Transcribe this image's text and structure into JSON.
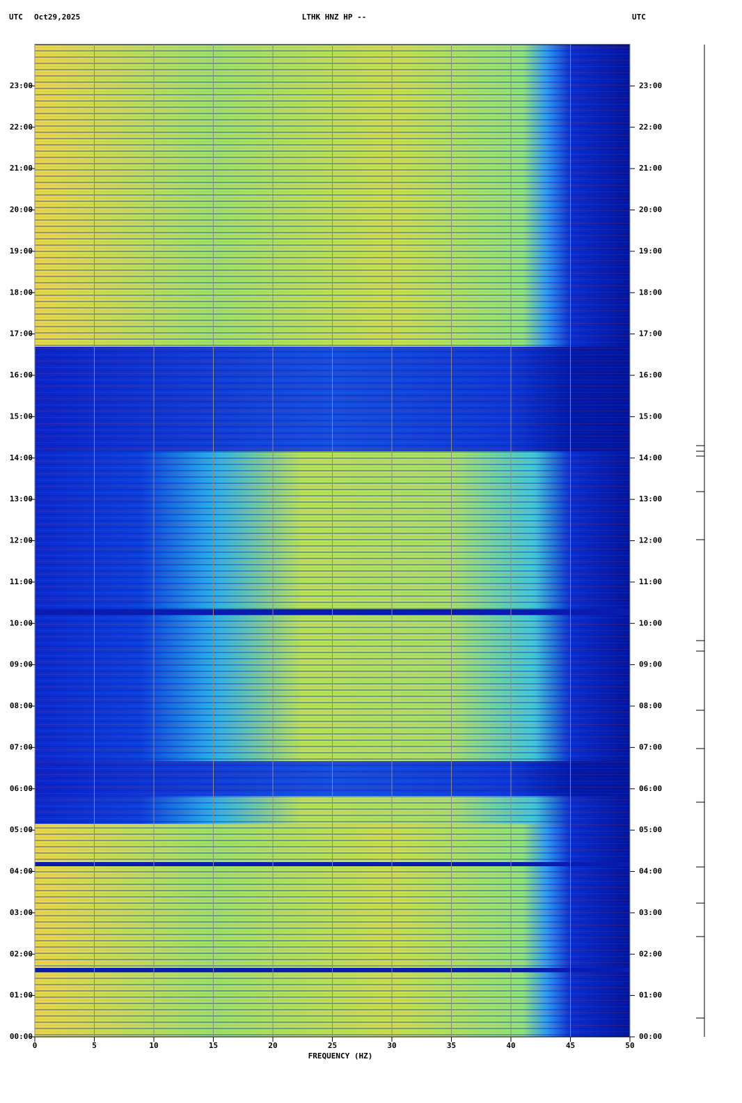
{
  "chart_data": {
    "type": "spectrogram",
    "header_left": "UTC",
    "date": "Oct29,2025",
    "title": "LTHK HNZ HP --",
    "header_right": "UTC",
    "xlabel": "FREQUENCY (HZ)",
    "xlim": [
      0,
      50
    ],
    "xticks": [
      0,
      5,
      10,
      15,
      20,
      25,
      30,
      35,
      40,
      45,
      50
    ],
    "ylim": [
      0,
      24
    ],
    "yticks": [
      {
        "value": 0,
        "label": "00:00"
      },
      {
        "value": 1,
        "label": "01:00"
      },
      {
        "value": 2,
        "label": "02:00"
      },
      {
        "value": 3,
        "label": "03:00"
      },
      {
        "value": 4,
        "label": "04:00"
      },
      {
        "value": 5,
        "label": "05:00"
      },
      {
        "value": 6,
        "label": "06:00"
      },
      {
        "value": 7,
        "label": "07:00"
      },
      {
        "value": 8,
        "label": "08:00"
      },
      {
        "value": 9,
        "label": "09:00"
      },
      {
        "value": 10,
        "label": "10:00"
      },
      {
        "value": 11,
        "label": "11:00"
      },
      {
        "value": 12,
        "label": "12:00"
      },
      {
        "value": 13,
        "label": "13:00"
      },
      {
        "value": 14,
        "label": "14:00"
      },
      {
        "value": 15,
        "label": "15:00"
      },
      {
        "value": 16,
        "label": "16:00"
      },
      {
        "value": 17,
        "label": "17:00"
      },
      {
        "value": 18,
        "label": "18:00"
      },
      {
        "value": 19,
        "label": "19:00"
      },
      {
        "value": 20,
        "label": "20:00"
      },
      {
        "value": 21,
        "label": "21:00"
      },
      {
        "value": 22,
        "label": "22:00"
      },
      {
        "value": 23,
        "label": "23:00"
      }
    ],
    "grid": true
  }
}
